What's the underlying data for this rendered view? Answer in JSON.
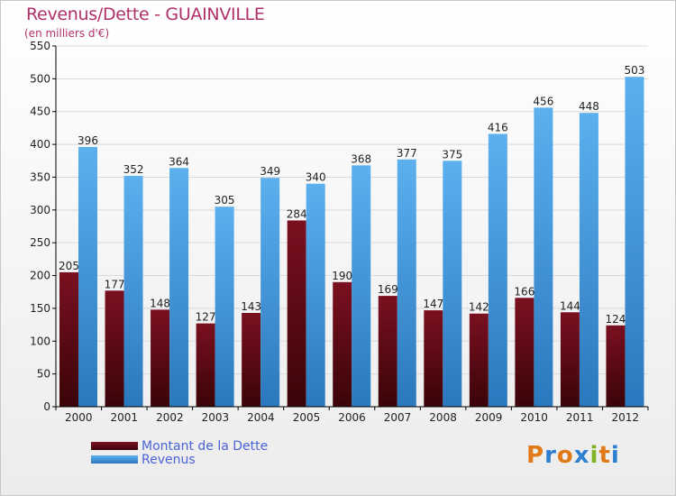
{
  "header": {
    "title": "Revenus/Dette - GUAINVILLE",
    "subtitle": "(en milliers d'€)"
  },
  "colors": {
    "dette": "#7a1020",
    "revenus": "#4a9ee0",
    "axis": "#000000",
    "grid": "#d9d9d9",
    "title": "#b0306a",
    "legend_text": "#4a63d6"
  },
  "logo": {
    "text": "Proxiti",
    "letter_colors": [
      "#e07a18",
      "#2f7fd0",
      "#e07a18",
      "#2f7fd0",
      "#7fb522",
      "#e07a18",
      "#2f7fd0"
    ]
  },
  "chart_data": {
    "type": "bar",
    "title": "Revenus/Dette - GUAINVILLE",
    "subtitle": "(en milliers d'€)",
    "categories": [
      "2000",
      "2001",
      "2002",
      "2003",
      "2004",
      "2005",
      "2006",
      "2007",
      "2008",
      "2009",
      "2010",
      "2011",
      "2012"
    ],
    "series": [
      {
        "name": "Montant de la Dette",
        "values": [
          205,
          177,
          148,
          127,
          143,
          284,
          190,
          169,
          147,
          142,
          166,
          144,
          124
        ]
      },
      {
        "name": "Revenus",
        "values": [
          396,
          352,
          364,
          305,
          349,
          340,
          368,
          377,
          375,
          416,
          456,
          448,
          503
        ]
      }
    ],
    "ylim": [
      0,
      550
    ],
    "yticks": [
      0,
      50,
      100,
      150,
      200,
      250,
      300,
      350,
      400,
      450,
      500,
      550
    ],
    "grid": true,
    "legend_position": "bottom-left"
  }
}
